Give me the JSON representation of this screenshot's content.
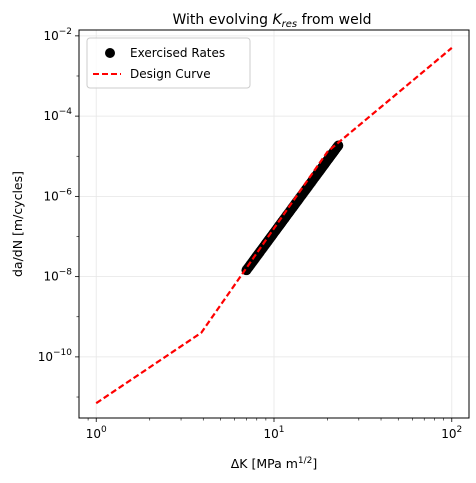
{
  "chart_data": {
    "type": "scatter",
    "title_main": "With evolving ",
    "title_var": "K",
    "title_sub": "res",
    "title_tail": " from weld",
    "xlabel_main": "ΔK [MPa m",
    "xlabel_sup": "1/2",
    "xlabel_tail": "]",
    "ylabel": "da/dN [m/cycles]",
    "x_scale": "log",
    "y_scale": "log",
    "xlim": [
      0.8,
      125
    ],
    "ylim": [
      3e-12,
      0.014
    ],
    "x_ticks": [
      {
        "value": 1,
        "base": "10",
        "exp": "0"
      },
      {
        "value": 10,
        "base": "10",
        "exp": "1"
      },
      {
        "value": 100,
        "base": "10",
        "exp": "2"
      }
    ],
    "y_ticks": [
      {
        "value": 1e-10,
        "base": "10",
        "exp": "−10"
      },
      {
        "value": 1e-08,
        "base": "10",
        "exp": "−8"
      },
      {
        "value": 1e-06,
        "base": "10",
        "exp": "−6"
      },
      {
        "value": 0.0001,
        "base": "10",
        "exp": "−4"
      },
      {
        "value": 0.01,
        "base": "10",
        "exp": "−2"
      }
    ],
    "grid": true,
    "legend_position": "top-left",
    "series": [
      {
        "name": "Exercised Rates",
        "kind": "markers",
        "color": "#000000",
        "x_range": [
          7.0,
          23.0
        ],
        "points": [
          [
            7.0,
            1.45e-08
          ],
          [
            23.0,
            1.85e-05
          ]
        ]
      },
      {
        "name": "Design Curve",
        "kind": "dashed-line",
        "color": "#ff0000",
        "points": [
          [
            1.0,
            7e-12
          ],
          [
            3.9,
            4e-10
          ],
          [
            20.0,
            1.3e-05
          ],
          [
            100.0,
            0.005
          ]
        ]
      }
    ]
  }
}
